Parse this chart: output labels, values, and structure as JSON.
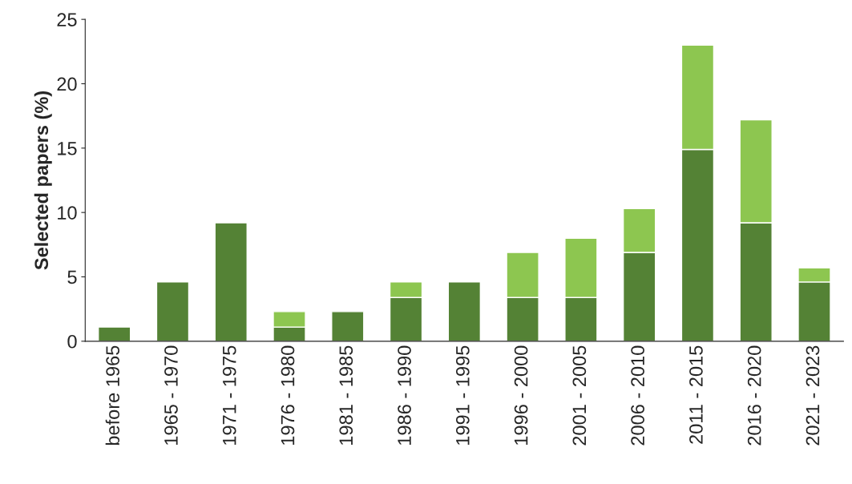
{
  "chart_data": {
    "type": "bar",
    "stacked": true,
    "ylabel": "Selected papers (%)",
    "categories": [
      "before 1965",
      "1965 - 1970",
      "1971 - 1975",
      "1976 - 1980",
      "1981 - 1985",
      "1986 - 1990",
      "1991 - 1995",
      "1996 - 2000",
      "2001 - 2005",
      "2006 - 2010",
      "2011 - 2015",
      "2016 - 2020",
      "2021 - 2023"
    ],
    "series": [
      {
        "color": "#548235",
        "values": [
          1.1,
          4.6,
          9.2,
          1.1,
          2.3,
          3.4,
          4.6,
          3.4,
          3.4,
          6.9,
          14.9,
          9.2,
          4.6
        ]
      },
      {
        "color": "#8dc650",
        "values": [
          null,
          null,
          null,
          1.2,
          null,
          1.2,
          null,
          3.5,
          4.6,
          3.4,
          8.1,
          8.0,
          1.1
        ]
      }
    ],
    "ylim": [
      0,
      25
    ],
    "yticks": [
      0,
      5,
      10,
      15,
      20,
      25
    ],
    "grid": false,
    "legend": false
  }
}
